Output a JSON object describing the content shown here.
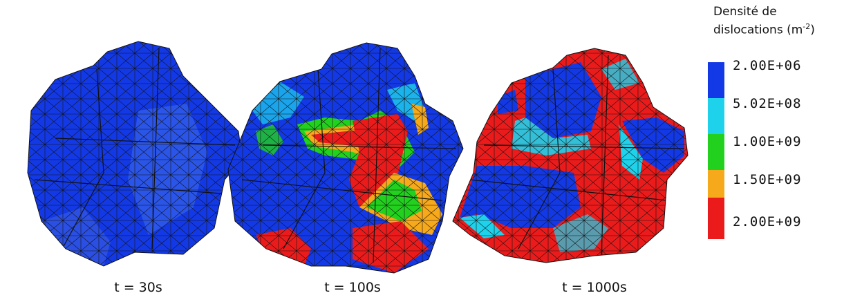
{
  "captions": [
    "t = 30s",
    "t = 100s",
    "t = 1000s"
  ],
  "legend": {
    "title_line1": "Densité de",
    "title_line2_prefix": "dislocations (m",
    "title_exponent": "-2",
    "title_suffix": ")",
    "entries": [
      {
        "label": "2.00E+06",
        "color": "#1339e6"
      },
      {
        "label": "5.02E+08",
        "color": "#1ed2ec"
      },
      {
        "label": "1.00E+09",
        "color": "#22d11e"
      },
      {
        "label": "1.50E+09",
        "color": "#f6a91b"
      },
      {
        "label": "2.00E+09",
        "color": "#ec1b1b"
      }
    ]
  },
  "colors": {
    "low": "#1339e6",
    "mid_low": "#1ed2ec",
    "mid": "#22d11e",
    "mid_high": "#f6a91b",
    "high": "#ec1b1b",
    "mesh_lines": "#111111"
  }
}
